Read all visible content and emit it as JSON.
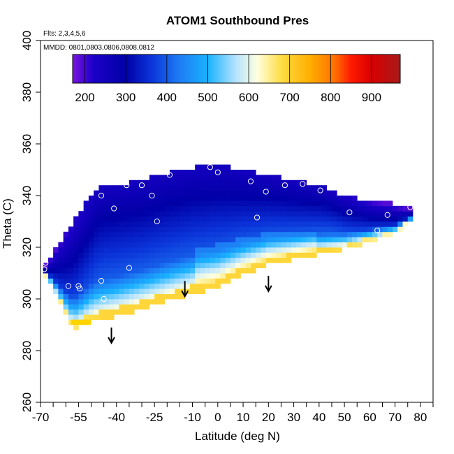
{
  "chart_data": {
    "type": "heatmap",
    "title": "ATOM1 Southbound Pres",
    "annotations": [
      "Flts: 2,3,4,5,6",
      "MMDD: 0801,0803,0806,0808,0812"
    ],
    "xlabel": "Latitude (deg N)",
    "ylabel": "Theta (C)",
    "xlim": [
      -70,
      85
    ],
    "ylim": [
      260,
      400
    ],
    "x_tick_labels": [
      "-70",
      "-55",
      "-40",
      "-25",
      "-10",
      "0",
      "10",
      "20",
      "30",
      "40",
      "50",
      "60",
      "70",
      "80"
    ],
    "x_ticks": [
      -70,
      -55,
      -40,
      -25,
      -10,
      0,
      10,
      20,
      30,
      40,
      50,
      60,
      70,
      80
    ],
    "x_minor_ticks": [
      -65,
      -60,
      -50,
      -45,
      -35,
      -30,
      -20,
      -15,
      -5,
      5,
      15,
      25,
      35,
      45,
      55,
      65,
      75,
      85
    ],
    "y_ticks": [
      260,
      280,
      300,
      320,
      340,
      360,
      380,
      400
    ],
    "y_tick_labels": [
      "260",
      "280",
      "300",
      "320",
      "340",
      "360",
      "380",
      "400"
    ],
    "colorbar": {
      "range": [
        170,
        970
      ],
      "ticks": [
        200,
        300,
        400,
        500,
        600,
        700,
        800,
        900
      ],
      "tick_labels": [
        "200",
        "300",
        "400",
        "500",
        "600",
        "700",
        "800",
        "900"
      ],
      "colors": [
        "#7a14e0",
        "#1c00c8",
        "#0000a6",
        "#0a32d8",
        "#1e7cf4",
        "#19b2ff",
        "#b8e4ff",
        "#ffffe0",
        "#ffdd44",
        "#ffae00",
        "#ff7000",
        "#ff1a00",
        "#d80000",
        "#a71a1a"
      ],
      "color_positions": [
        170,
        220,
        300,
        360,
        430,
        500,
        570,
        620,
        680,
        750,
        810,
        850,
        900,
        970
      ]
    },
    "arrows": [
      {
        "lat": -42,
        "theta": 283
      },
      {
        "lat": -13,
        "theta": 301
      },
      {
        "lat": 20,
        "theta": 303
      }
    ],
    "observation_points": [
      {
        "lat": -68,
        "theta": 314
      },
      {
        "lat": -68.5,
        "theta": 311.5
      },
      {
        "lat": -59,
        "theta": 305
      },
      {
        "lat": -55,
        "theta": 305
      },
      {
        "lat": -54.5,
        "theta": 304
      },
      {
        "lat": -46,
        "theta": 307
      },
      {
        "lat": -45,
        "theta": 300
      },
      {
        "lat": -46,
        "theta": 340
      },
      {
        "lat": -41,
        "theta": 335
      },
      {
        "lat": -36,
        "theta": 344
      },
      {
        "lat": -35,
        "theta": 312
      },
      {
        "lat": -30,
        "theta": 344
      },
      {
        "lat": -26,
        "theta": 340
      },
      {
        "lat": -24,
        "theta": 330
      },
      {
        "lat": -19,
        "theta": 348
      },
      {
        "lat": -3,
        "theta": 351
      },
      {
        "lat": 0,
        "theta": 349
      },
      {
        "lat": 13,
        "theta": 345.5
      },
      {
        "lat": 15.5,
        "theta": 331.5
      },
      {
        "lat": 19,
        "theta": 341.5
      },
      {
        "lat": 26.5,
        "theta": 344
      },
      {
        "lat": 33.5,
        "theta": 344.5
      },
      {
        "lat": 40.5,
        "theta": 342
      },
      {
        "lat": 52,
        "theta": 333.5
      },
      {
        "lat": 63,
        "theta": 326.5
      },
      {
        "lat": 67,
        "theta": 332.5
      },
      {
        "lat": 76,
        "theta": 335.5
      }
    ],
    "field_outline": {
      "top_boundary": [
        [
          -48,
          342
        ],
        [
          -42,
          343
        ],
        [
          -30,
          345
        ],
        [
          -20,
          348
        ],
        [
          -10,
          350
        ],
        [
          0,
          351
        ],
        [
          10,
          349
        ],
        [
          20,
          347
        ],
        [
          30,
          345
        ],
        [
          40,
          343
        ],
        [
          50,
          339
        ],
        [
          60,
          337
        ],
        [
          70,
          336
        ],
        [
          77,
          335
        ]
      ],
      "bottom_boundary": [
        [
          -69,
          311
        ],
        [
          -66,
          306
        ],
        [
          -63,
          300
        ],
        [
          -60,
          294
        ],
        [
          -57,
          289
        ],
        [
          -50,
          292
        ],
        [
          -40,
          294
        ],
        [
          -30,
          297
        ],
        [
          -20,
          300
        ],
        [
          -10,
          303
        ],
        [
          0,
          305
        ],
        [
          10,
          310
        ],
        [
          20,
          314
        ],
        [
          30,
          316
        ],
        [
          40,
          318
        ],
        [
          50,
          320
        ],
        [
          60,
          323
        ],
        [
          70,
          326
        ],
        [
          77,
          331
        ]
      ]
    }
  }
}
